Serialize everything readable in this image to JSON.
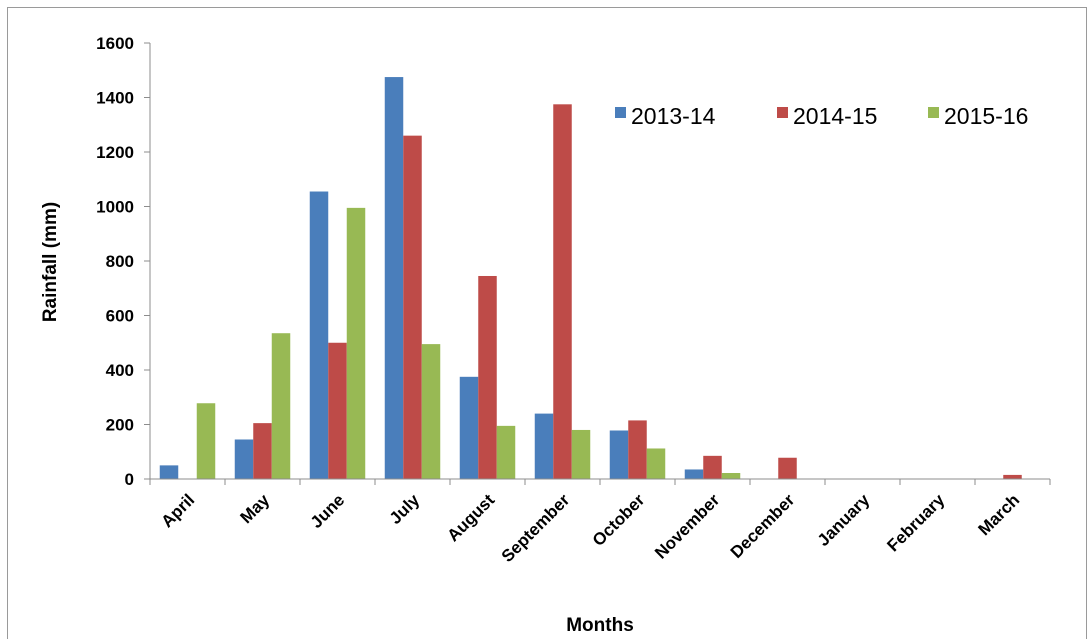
{
  "chart_data": {
    "type": "bar",
    "title": "",
    "xlabel": "Months",
    "ylabel": "Rainfall (mm)",
    "ylim": [
      0,
      1600
    ],
    "yticks": [
      0,
      200,
      400,
      600,
      800,
      1000,
      1200,
      1400,
      1600
    ],
    "grid": false,
    "legend_position": "top-right",
    "categories": [
      "April",
      "May",
      "June",
      "July",
      "August",
      "September",
      "October",
      "November",
      "December",
      "January",
      "February",
      "March"
    ],
    "series": [
      {
        "name": "2013-14",
        "color": "#4a7ebb",
        "values": [
          50,
          145,
          1055,
          1475,
          375,
          240,
          178,
          35,
          0,
          0,
          0,
          0
        ]
      },
      {
        "name": "2014-15",
        "color": "#be4b48",
        "values": [
          0,
          205,
          500,
          1260,
          745,
          1375,
          215,
          85,
          78,
          0,
          0,
          15
        ]
      },
      {
        "name": "2015-16",
        "color": "#98b954",
        "values": [
          278,
          535,
          995,
          495,
          195,
          180,
          112,
          22,
          0,
          0,
          0,
          0
        ]
      }
    ]
  }
}
